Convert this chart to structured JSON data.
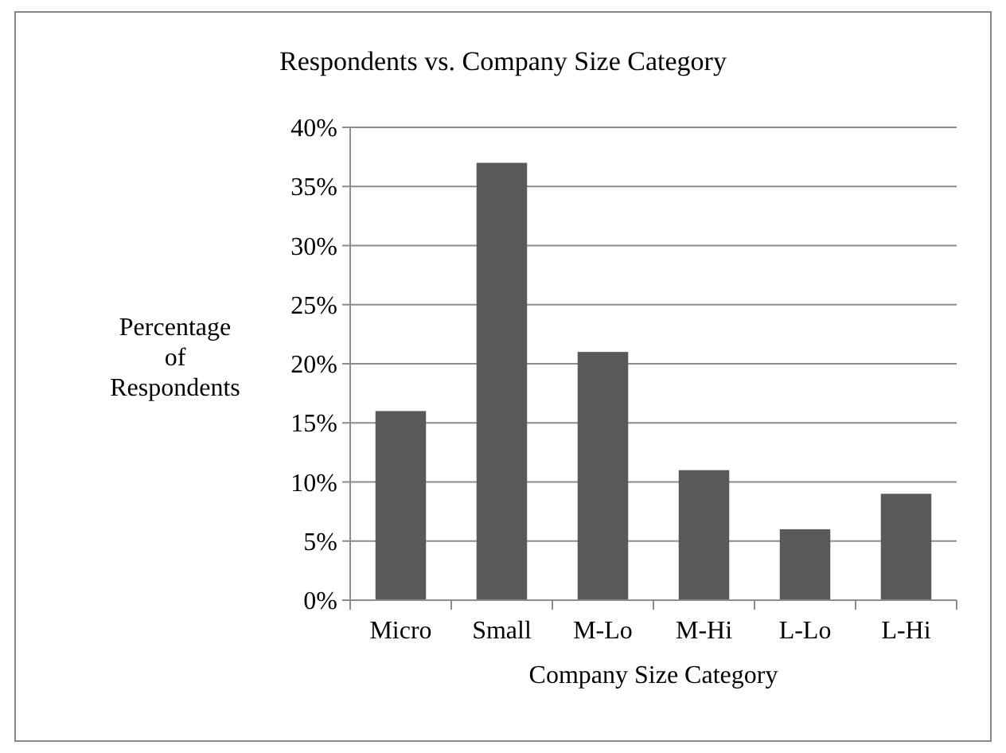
{
  "chart_data": {
    "type": "bar",
    "title": "Respondents vs. Company Size Category",
    "xlabel": "Company Size Category",
    "ylabel": "Percentage of Respondents",
    "categories": [
      "Micro",
      "Small",
      "M-Lo",
      "M-Hi",
      "L-Lo",
      "L-Hi"
    ],
    "values": [
      16,
      37,
      21,
      11,
      6,
      9
    ],
    "color": "#595959",
    "ylim": [
      0,
      40
    ],
    "yticks": [
      {
        "value": 0,
        "label": "0%"
      },
      {
        "value": 5,
        "label": "5%"
      },
      {
        "value": 10,
        "label": "10%"
      },
      {
        "value": 15,
        "label": "15%"
      },
      {
        "value": 20,
        "label": "20%"
      },
      {
        "value": 25,
        "label": "25%"
      },
      {
        "value": 30,
        "label": "30%"
      },
      {
        "value": 35,
        "label": "35%"
      },
      {
        "value": 40,
        "label": "40%"
      }
    ],
    "grid": "y"
  }
}
